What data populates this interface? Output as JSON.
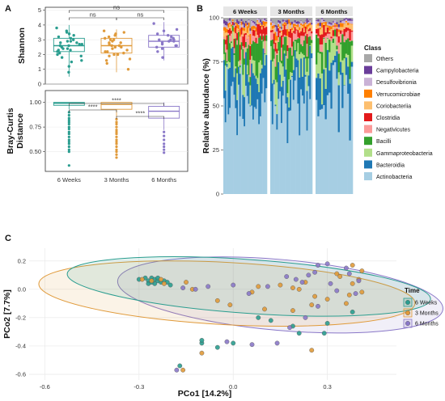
{
  "panel_labels": [
    "A",
    "B",
    "C"
  ],
  "colors": {
    "six_weeks": "#2a9d8f",
    "three_months": "#e09a3a",
    "six_months": "#8a78c8"
  },
  "chart_data": [
    {
      "type": "box",
      "id": "shannon",
      "ylabel": "Shannon",
      "categories": [
        "6 Weeks",
        "3 Months",
        "6 Months"
      ],
      "yticks": [
        0,
        1,
        2,
        3,
        4,
        5
      ],
      "ylim": [
        0,
        5.2
      ],
      "boxes": [
        {
          "q1": 2.2,
          "median": 2.6,
          "q3": 3.1,
          "low": 0.5,
          "high": 4.0
        },
        {
          "q1": 2.1,
          "median": 2.6,
          "q3": 3.1,
          "low": 0.8,
          "high": 3.7
        },
        {
          "q1": 2.5,
          "median": 2.9,
          "q3": 3.3,
          "low": 1.6,
          "high": 4.2
        }
      ],
      "points": [
        [
          2.6,
          3.1,
          2.3,
          1.8,
          2.9,
          3.4,
          2.0,
          2.7,
          1.5,
          3.6,
          2.4,
          2.8,
          3.0,
          2.2,
          1.2,
          2.5,
          3.3,
          2.1,
          2.9,
          0.8,
          2.6,
          3.8,
          1.9,
          2.7,
          3.2,
          2.4,
          1.6,
          2.8,
          3.5,
          2.3
        ],
        [
          2.5,
          3.0,
          2.2,
          1.7,
          3.3,
          2.8,
          2.0,
          2.6,
          1.4,
          3.5,
          2.4,
          2.9,
          3.1,
          1.0,
          2.7,
          2.3,
          3.4,
          1.9,
          2.6,
          3.0,
          2.1,
          2.8,
          1.6,
          3.2,
          2.5,
          2.2,
          3.6,
          2.0
        ],
        [
          2.9,
          3.3,
          2.6,
          3.0,
          2.4,
          3.6,
          2.8,
          3.1,
          1.8,
          2.7,
          3.4,
          2.5,
          3.0,
          4.1,
          2.2,
          3.2,
          2.9,
          3.7,
          2.6,
          3.0
        ]
      ],
      "comparisons": [
        {
          "from": 0,
          "to": 1,
          "label": "ns"
        },
        {
          "from": 0,
          "to": 2,
          "label": "ns"
        },
        {
          "from": 1,
          "to": 2,
          "label": "ns"
        }
      ]
    },
    {
      "type": "box",
      "id": "bray",
      "ylabel_lines": [
        "Bray-Curtis",
        "Distance"
      ],
      "categories": [
        "6 Weeks",
        "3 Months",
        "6 Months"
      ],
      "yticks": [
        0.5,
        0.75,
        1.0
      ],
      "ytick_labels": [
        "0.50",
        "0.75",
        "1.00"
      ],
      "ylim": [
        0.3,
        1.12
      ],
      "boxes": [
        {
          "q1": 0.97,
          "median": 0.99,
          "q3": 1.0,
          "low": 0.93,
          "high": 1.0
        },
        {
          "q1": 0.93,
          "median": 0.98,
          "q3": 1.0,
          "low": 0.85,
          "high": 1.0
        },
        {
          "q1": 0.84,
          "median": 0.91,
          "q3": 0.96,
          "low": 0.72,
          "high": 1.0
        }
      ],
      "outliers": [
        [
          0.9,
          0.87,
          0.84,
          0.82,
          0.8,
          0.78,
          0.75,
          0.73,
          0.7,
          0.68,
          0.65,
          0.62,
          0.6,
          0.58,
          0.55,
          0.52,
          0.5,
          0.36
        ],
        [
          0.83,
          0.8,
          0.78,
          0.75,
          0.72,
          0.7,
          0.68,
          0.65,
          0.62,
          0.6,
          0.58,
          0.55,
          0.52,
          0.5,
          0.47,
          0.44
        ],
        [
          0.7,
          0.66,
          0.62,
          0.58,
          0.55,
          0.52,
          0.49
        ]
      ],
      "comparisons": [
        {
          "from": 0,
          "to": 1,
          "label": "****"
        },
        {
          "from": 0,
          "to": 2,
          "label": "****"
        },
        {
          "from": 1,
          "to": 2,
          "label": "****"
        }
      ]
    },
    {
      "type": "stacked_bar",
      "id": "abundance",
      "ylabel": "Relative abundance (%)",
      "yticks": [
        0,
        25,
        50,
        75,
        100
      ],
      "ylim": [
        0,
        100
      ],
      "facets": [
        {
          "label": "6 Weeks",
          "n": 30
        },
        {
          "label": "3 Months",
          "n": 28
        },
        {
          "label": "6 Months",
          "n": 20
        }
      ],
      "legend_title": "Class",
      "classes": [
        {
          "name": "Others",
          "color": "#a8a8a8"
        },
        {
          "name": "Campylobacteria",
          "color": "#6a3d9a"
        },
        {
          "name": "Desulfovibrionia",
          "color": "#cab2d6"
        },
        {
          "name": "Verrucomicrobiae",
          "color": "#ff7f00"
        },
        {
          "name": "Coriobacteriia",
          "color": "#fdbf6f"
        },
        {
          "name": "Clostridia",
          "color": "#e31a1c"
        },
        {
          "name": "Negativicutes",
          "color": "#fb9a99"
        },
        {
          "name": "Bacilli",
          "color": "#33a02c"
        },
        {
          "name": "Gammaproteobacteria",
          "color": "#b2df8a"
        },
        {
          "name": "Bacteroidia",
          "color": "#1f78b4"
        },
        {
          "name": "Actinobacteria",
          "color": "#a6cee3"
        }
      ]
    },
    {
      "type": "scatter",
      "id": "pcoa",
      "xlabel": "PCo1 [14.2%]",
      "ylabel": "PCo2 [7.7%]",
      "xticks": [
        -0.6,
        -0.3,
        0.0,
        0.3
      ],
      "xtick_labels": [
        "-0.6",
        "-0.3",
        "0.0",
        "0.3"
      ],
      "yticks": [
        -0.6,
        -0.4,
        -0.2,
        0.0,
        0.2
      ],
      "ytick_labels": [
        "-0.6",
        "-0.4",
        "-0.2",
        "0.0",
        "0.2"
      ],
      "xlim": [
        -0.65,
        0.52
      ],
      "ylim": [
        -0.64,
        0.29
      ],
      "legend_title": "Time",
      "series": [
        {
          "name": "6 Weeks",
          "color_key": "six_weeks",
          "points": [
            [
              -0.3,
              0.07
            ],
            [
              -0.28,
              0.08
            ],
            [
              -0.27,
              0.06
            ],
            [
              -0.26,
              0.08
            ],
            [
              -0.25,
              0.07
            ],
            [
              -0.24,
              0.06
            ],
            [
              -0.23,
              0.05
            ],
            [
              -0.27,
              0.04
            ],
            [
              -0.25,
              0.04
            ],
            [
              -0.22,
              0.06
            ],
            [
              -0.24,
              0.08
            ],
            [
              -0.26,
              0.05
            ],
            [
              -0.21,
              0.05
            ],
            [
              -0.2,
              0.03
            ],
            [
              0.08,
              -0.2
            ],
            [
              0.12,
              -0.22
            ],
            [
              0.19,
              -0.26
            ],
            [
              0.21,
              -0.31
            ],
            [
              0.3,
              -0.24
            ],
            [
              0.29,
              -0.31
            ],
            [
              0.38,
              -0.16
            ],
            [
              -0.1,
              -0.38
            ],
            [
              -0.05,
              -0.41
            ],
            [
              0.0,
              -0.38
            ],
            [
              -0.17,
              -0.54
            ],
            [
              -0.1,
              -0.36
            ]
          ],
          "ellipse": {
            "cx": 0.05,
            "cy": 0.02,
            "rx": 0.58,
            "ry": 0.19,
            "rot": 4
          }
        },
        {
          "name": "3 Months",
          "color_key": "three_months",
          "points": [
            [
              -0.29,
              0.07
            ],
            [
              -0.26,
              0.06
            ],
            [
              -0.23,
              0.07
            ],
            [
              -0.22,
              0.04
            ],
            [
              -0.15,
              0.05
            ],
            [
              -0.13,
              0.0
            ],
            [
              -0.05,
              -0.08
            ],
            [
              -0.01,
              -0.11
            ],
            [
              0.06,
              -0.02
            ],
            [
              0.08,
              0.02
            ],
            [
              0.1,
              -0.14
            ],
            [
              0.15,
              0.03
            ],
            [
              0.19,
              0.01
            ],
            [
              0.19,
              -0.15
            ],
            [
              0.21,
              0.0
            ],
            [
              0.23,
              0.05
            ],
            [
              0.25,
              -0.11
            ],
            [
              0.26,
              -0.05
            ],
            [
              0.3,
              -0.07
            ],
            [
              0.33,
              0.11
            ],
            [
              0.34,
              0.09
            ],
            [
              0.36,
              -0.1
            ],
            [
              0.37,
              -0.04
            ],
            [
              0.38,
              0.04
            ],
            [
              0.38,
              0.17
            ],
            [
              0.41,
              0.13
            ],
            [
              0.4,
              0.07
            ],
            [
              0.41,
              -0.02
            ],
            [
              0.25,
              -0.43
            ],
            [
              -0.1,
              -0.45
            ],
            [
              -0.16,
              -0.57
            ]
          ],
          "ellipse": {
            "cx": -0.02,
            "cy": -0.03,
            "rx": 0.6,
            "ry": 0.22,
            "rot": 3
          }
        },
        {
          "name": "6 Months",
          "color_key": "six_months",
          "points": [
            [
              -0.16,
              0.01
            ],
            [
              -0.12,
              0.0
            ],
            [
              -0.08,
              0.02
            ],
            [
              0.0,
              0.03
            ],
            [
              0.05,
              -0.03
            ],
            [
              0.11,
              0.02
            ],
            [
              0.17,
              0.09
            ],
            [
              0.2,
              0.07
            ],
            [
              0.22,
              0.05
            ],
            [
              0.24,
              0.1
            ],
            [
              0.26,
              0.12
            ],
            [
              0.27,
              0.17
            ],
            [
              0.3,
              0.18
            ],
            [
              0.31,
              0.04
            ],
            [
              0.33,
              -0.01
            ],
            [
              0.36,
              0.15
            ],
            [
              0.37,
              0.11
            ],
            [
              0.39,
              -0.03
            ],
            [
              0.4,
              0.06
            ],
            [
              0.27,
              -0.12
            ],
            [
              0.23,
              -0.2
            ],
            [
              0.18,
              -0.27
            ],
            [
              0.06,
              -0.39
            ],
            [
              -0.02,
              -0.37
            ],
            [
              -0.18,
              -0.57
            ],
            [
              0.14,
              -0.38
            ]
          ],
          "ellipse": {
            "cx": 0.15,
            "cy": -0.04,
            "rx": 0.52,
            "ry": 0.25,
            "rot": 5
          }
        }
      ]
    }
  ]
}
